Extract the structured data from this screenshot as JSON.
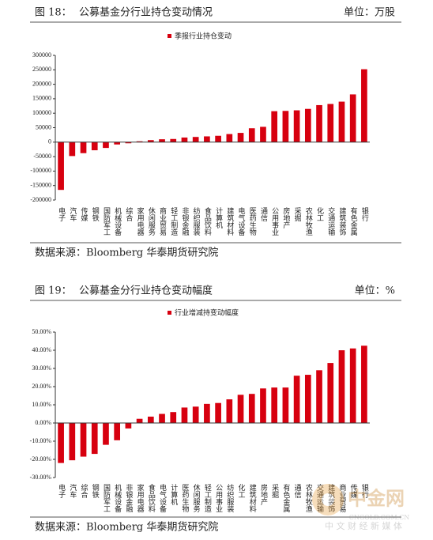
{
  "chart_data": [
    {
      "type": "bar",
      "figure_label": "图 18：",
      "title": "公募基金分行业持仓变动情况",
      "unit": "单位：万股",
      "source": "数据来源：Bloomberg 华泰期货研究院",
      "legend": "季报行业持仓变动",
      "color": "#d7000f",
      "categories": [
        "电子",
        "汽车",
        "传媒",
        "钢铁",
        "国防军工",
        "机械设备",
        "综合",
        "家用电器",
        "休闲服务",
        "商业贸易",
        "轻工制造",
        "非银金融",
        "纺织服装",
        "食品饮料",
        "计算机",
        "建筑材料",
        "电气设备",
        "医药生物",
        "通信",
        "公用事业",
        "房地产",
        "采掘",
        "农林牧渔",
        "化工",
        "交通运输",
        "建筑装饰",
        "有色金属",
        "银行"
      ],
      "values": [
        -165000,
        -48000,
        -38000,
        -28000,
        -20000,
        -8000,
        -4000,
        3000,
        7000,
        10000,
        11000,
        16000,
        18000,
        20000,
        22000,
        28000,
        32000,
        48000,
        53000,
        107000,
        108000,
        110000,
        115000,
        128000,
        132000,
        140000,
        165000,
        252000
      ],
      "ylim": [
        -200000,
        300000
      ],
      "yticks": [
        -200000,
        -150000,
        -100000,
        -50000,
        0,
        50000,
        100000,
        150000,
        200000,
        250000,
        300000
      ]
    },
    {
      "type": "bar",
      "figure_label": "图 19：",
      "title": "公募基金分行业持仓变动幅度",
      "unit": "单位：%",
      "source": "数据来源：Bloomberg 华泰期货研究院",
      "legend": "行业增减持变动幅度",
      "color": "#d7000f",
      "categories": [
        "电子",
        "汽车",
        "综合",
        "钢铁",
        "国防军工",
        "机械设备",
        "非银金融",
        "家用电器",
        "食品饮料",
        "电气设备",
        "计算机",
        "医药生物",
        "休闲服务",
        "轻工制造",
        "公用事业",
        "纺织服装",
        "化工",
        "建筑材料",
        "房地产",
        "采掘",
        "有色金属",
        "通信",
        "农林牧渔",
        "交通运输",
        "建筑装饰",
        "商业贸易",
        "传媒",
        "银行"
      ],
      "values": [
        -22,
        -20.5,
        -18.5,
        -17,
        -12,
        -9.5,
        -3,
        2.3,
        3.5,
        5,
        6,
        8.5,
        9,
        10.5,
        11,
        13,
        15.5,
        16,
        19,
        19.5,
        19.5,
        26,
        26.5,
        29,
        33,
        40,
        41,
        42.5
      ],
      "ylim": [
        -30,
        50
      ],
      "yticks": [
        {
          "value": -30,
          "label": "-30.00%"
        },
        {
          "value": -20,
          "label": "-20.00%"
        },
        {
          "value": -10,
          "label": "-10.00%"
        },
        {
          "value": 0,
          "label": "0.00%"
        },
        {
          "value": 10,
          "label": "10.00%"
        },
        {
          "value": 20,
          "label": "20.00%"
        },
        {
          "value": 30,
          "label": "30.00%"
        },
        {
          "value": 40,
          "label": "40.00%"
        },
        {
          "value": 50,
          "label": "50.00%"
        }
      ]
    }
  ],
  "watermark": {
    "name": "中金网",
    "site": "CNGOLD.COM.CN",
    "slogan": "中 文 财 经 新 媒 体"
  }
}
